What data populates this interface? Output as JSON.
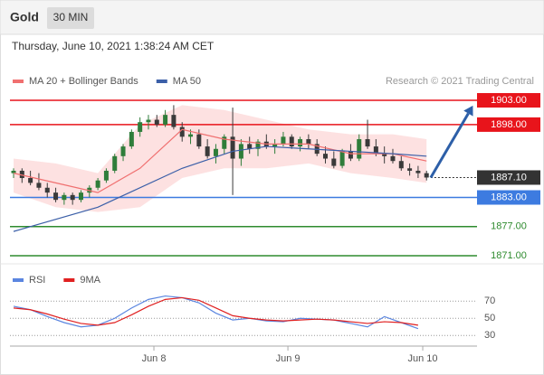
{
  "header": {
    "symbol": "Gold",
    "interval": "30 MIN",
    "timestamp": "Thursday, June 10, 2021 1:38:24 AM CET"
  },
  "chart_data": [
    {
      "type": "candlestick",
      "credit": "Research © 2021 Trading Central",
      "xlim": [
        -0.43,
        55.42
      ],
      "ylim": [
        1869.7,
        1905.05
      ],
      "up_color": "#2f7d3a",
      "down_color": "#3a3a3a",
      "ohlc": [
        [
          1888,
          1889,
          1887,
          1888.5
        ],
        [
          1888.5,
          1889,
          1886,
          1887
        ],
        [
          1887,
          1888.5,
          1885.5,
          1886
        ],
        [
          1886,
          1888,
          1884.5,
          1885
        ],
        [
          1885,
          1886,
          1883,
          1884
        ],
        [
          1884,
          1885,
          1882,
          1882.5
        ],
        [
          1882.5,
          1884,
          1881.5,
          1883.5
        ],
        [
          1883.5,
          1884,
          1881.5,
          1882.5
        ],
        [
          1882.5,
          1884.5,
          1882,
          1884
        ],
        [
          1884,
          1885.5,
          1883,
          1885
        ],
        [
          1885,
          1887,
          1884.5,
          1886.5
        ],
        [
          1886.5,
          1889,
          1886,
          1888.5
        ],
        [
          1888.5,
          1892,
          1888,
          1891.5
        ],
        [
          1891.5,
          1894,
          1890.5,
          1893.5
        ],
        [
          1893.5,
          1897,
          1893,
          1896.5
        ],
        [
          1896.5,
          1899.5,
          1895.5,
          1898.5
        ],
        [
          1898.5,
          1900,
          1897,
          1899
        ],
        [
          1899,
          1900,
          1897.5,
          1898
        ],
        [
          1898,
          1901,
          1897.5,
          1900
        ],
        [
          1900,
          1902,
          1897,
          1897.5
        ],
        [
          1897.5,
          1898.5,
          1894.5,
          1895.5
        ],
        [
          1895.5,
          1897,
          1894,
          1896
        ],
        [
          1896,
          1897,
          1893,
          1893.5
        ],
        [
          1893.5,
          1895,
          1891,
          1891.5
        ],
        [
          1891.5,
          1894,
          1890,
          1893
        ],
        [
          1893,
          1896,
          1892,
          1895.5
        ],
        [
          1895.5,
          1901.5,
          1883.5,
          1891
        ],
        [
          1891,
          1895,
          1889.5,
          1894
        ],
        [
          1894,
          1895.5,
          1892,
          1893
        ],
        [
          1893,
          1895,
          1891.5,
          1894.5
        ],
        [
          1894.5,
          1896,
          1893,
          1893.5
        ],
        [
          1893.5,
          1895,
          1892,
          1894
        ],
        [
          1894,
          1896.5,
          1893.5,
          1895.5
        ],
        [
          1895.5,
          1896,
          1893,
          1893.5
        ],
        [
          1893.5,
          1895.5,
          1892.5,
          1895
        ],
        [
          1895,
          1896,
          1893,
          1894
        ],
        [
          1894,
          1895,
          1891.5,
          1892
        ],
        [
          1892,
          1893.5,
          1890,
          1891
        ],
        [
          1891,
          1892.5,
          1889,
          1889.5
        ],
        [
          1889.5,
          1893,
          1889,
          1892.5
        ],
        [
          1892.5,
          1894,
          1890.5,
          1891
        ],
        [
          1891,
          1896,
          1890.5,
          1895
        ],
        [
          1895,
          1899,
          1893,
          1893.5
        ],
        [
          1893.5,
          1895,
          1891.5,
          1892
        ],
        [
          1892,
          1893.5,
          1890,
          1891.5
        ],
        [
          1891.5,
          1893,
          1890,
          1890.5
        ],
        [
          1890.5,
          1891.5,
          1888.5,
          1889
        ],
        [
          1889,
          1890,
          1887.5,
          1888.5
        ],
        [
          1888.5,
          1889.5,
          1887,
          1888
        ],
        [
          1888,
          1888.5,
          1886.5,
          1887.1
        ]
      ],
      "series": [
        {
          "name": "MA 20 + Bollinger Bands",
          "color": "#f07070",
          "band_color": "#fcd9d9",
          "x": [
            0,
            5,
            10,
            15,
            20,
            25,
            30,
            35,
            40,
            45,
            49
          ],
          "values": [
            1888,
            1886,
            1884,
            1889,
            1897,
            1895,
            1894,
            1894,
            1892,
            1892,
            1890.5
          ],
          "upper": [
            1891,
            1890,
            1888,
            1898,
            1902,
            1901,
            1899,
            1897,
            1896,
            1896,
            1895
          ],
          "lower": [
            1884,
            1881,
            1880,
            1881,
            1887,
            1889,
            1889,
            1890,
            1888,
            1887,
            1886
          ]
        },
        {
          "name": "MA 50",
          "color": "#3b5fa8",
          "x": [
            0,
            10,
            20,
            26,
            30,
            35,
            40,
            45,
            49
          ],
          "values": [
            1876,
            1881,
            1889,
            1892.5,
            1893.5,
            1893,
            1892.5,
            1892,
            1891.5
          ]
        }
      ],
      "levels": [
        {
          "value": 1903,
          "label": "1903.00",
          "color": "#e8141b",
          "style": "solid",
          "box": true
        },
        {
          "value": 1898,
          "label": "1898.00",
          "color": "#e8141b",
          "style": "solid",
          "box": true
        },
        {
          "value": 1887.1,
          "label": "1887.10",
          "color": "#333333",
          "style": "dotted",
          "box": true
        },
        {
          "value": 1883,
          "label": "1883.00",
          "color": "#3d7be0",
          "style": "solid",
          "box": true
        },
        {
          "value": 1877,
          "label": "1877.00",
          "color": "#2e8b2e",
          "style": "solid",
          "box": false
        },
        {
          "value": 1871,
          "label": "1871.00",
          "color": "#2e8b2e",
          "style": "solid",
          "box": false
        }
      ],
      "arrow": {
        "x": [
          49.5,
          54.5
        ],
        "y": [
          1887.1,
          1901.9
        ],
        "color": "#2d5fa8"
      }
    },
    {
      "type": "line",
      "xlim": [
        -0.43,
        55.42
      ],
      "ylim": [
        15,
        105
      ],
      "yticks": [
        70,
        50,
        30
      ],
      "xticks": [
        {
          "value": 16.65,
          "label": "Jun 8"
        },
        {
          "value": 32.55,
          "label": "Jun 9"
        },
        {
          "value": 48.55,
          "label": "Jun 10"
        }
      ],
      "x": [
        0,
        2,
        4,
        6,
        8,
        10,
        12,
        14,
        16,
        18,
        20,
        22,
        24,
        26,
        28,
        30,
        32,
        34,
        36,
        38,
        40,
        42,
        44,
        46,
        48
      ],
      "series": [
        {
          "name": "RSI",
          "color": "#5b86e0",
          "values": [
            64,
            60,
            52,
            45,
            40,
            42,
            50,
            62,
            72,
            76,
            74,
            68,
            56,
            48,
            50,
            47,
            46,
            50,
            49,
            48,
            44,
            40,
            52,
            45,
            38
          ]
        },
        {
          "name": "9MA",
          "color": "#e02020",
          "values": [
            62,
            60,
            55,
            49,
            44,
            42,
            45,
            54,
            64,
            72,
            74,
            71,
            62,
            53,
            50,
            48,
            47,
            48,
            49,
            48,
            46,
            44,
            46,
            45,
            42
          ]
        }
      ]
    }
  ]
}
